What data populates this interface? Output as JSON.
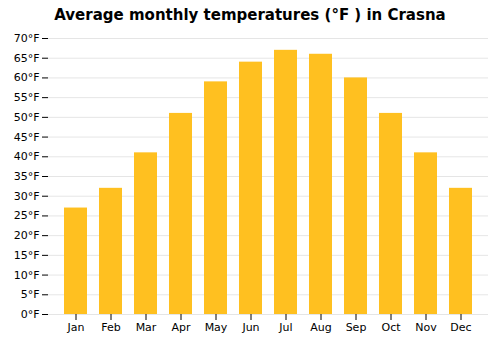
{
  "chart_data": {
    "type": "bar",
    "title": "Average monthly temperatures (°F ) in Crasna",
    "categories": [
      "Jan",
      "Feb",
      "Mar",
      "Apr",
      "May",
      "Jun",
      "Jul",
      "Aug",
      "Sep",
      "Oct",
      "Nov",
      "Dec"
    ],
    "values": [
      27,
      32,
      41,
      51,
      59,
      64,
      67,
      66,
      60,
      51,
      41,
      32
    ],
    "color": "#FFC020",
    "ylim": [
      0,
      70
    ],
    "yticks": [
      {
        "value": 0,
        "label": "0°F"
      },
      {
        "value": 5,
        "label": "5°F"
      },
      {
        "value": 10,
        "label": "10°F"
      },
      {
        "value": 15,
        "label": "15°F"
      },
      {
        "value": 20,
        "label": "20°F"
      },
      {
        "value": 25,
        "label": "25°F"
      },
      {
        "value": 30,
        "label": "30°F"
      },
      {
        "value": 35,
        "label": "35°F"
      },
      {
        "value": 40,
        "label": "40°F"
      },
      {
        "value": 45,
        "label": "45°F"
      },
      {
        "value": 50,
        "label": "50°F"
      },
      {
        "value": 55,
        "label": "55°F"
      },
      {
        "value": 60,
        "label": "60°F"
      },
      {
        "value": 65,
        "label": "65°F"
      },
      {
        "value": 70,
        "label": "70°F"
      }
    ],
    "grid": true
  }
}
